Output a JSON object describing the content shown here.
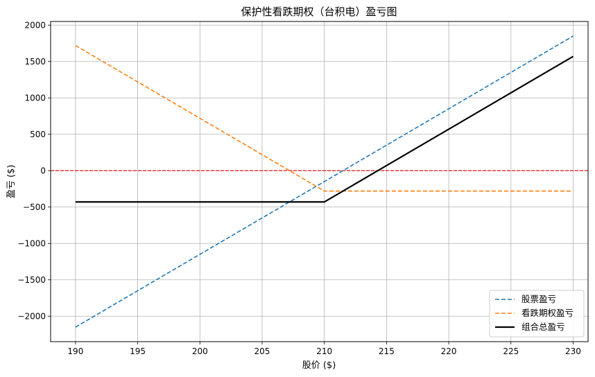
{
  "chart_data": {
    "type": "line",
    "title": "保护性看跌期权（台积电）盈亏图",
    "xlabel": "股价 ($)",
    "ylabel": "盈亏 ($)",
    "xlim": [
      188,
      231.2
    ],
    "ylim": [
      -2350,
      2050
    ],
    "xticks": [
      190,
      195,
      200,
      205,
      210,
      215,
      220,
      225,
      230
    ],
    "yticks": [
      -2000,
      -1500,
      -1000,
      -500,
      0,
      500,
      1000,
      1500,
      2000
    ],
    "grid": true,
    "legend_position": "bottom-right",
    "reference_line": {
      "y": 0,
      "color": "#e41a1c",
      "style": "dashed"
    },
    "series": [
      {
        "name": "股票盈亏",
        "color": "#1f77b4",
        "style": "dashed",
        "x": [
          190,
          230
        ],
        "y": [
          -2150,
          1850
        ]
      },
      {
        "name": "看跌期权盈亏",
        "color": "#ff7f0e",
        "style": "dashed",
        "x": [
          190,
          210,
          230
        ],
        "y": [
          1720,
          -280,
          -280
        ]
      },
      {
        "name": "组合总盈亏",
        "color": "#000000",
        "style": "solid",
        "x": [
          190,
          210,
          230
        ],
        "y": [
          -430,
          -430,
          1570
        ]
      }
    ]
  }
}
